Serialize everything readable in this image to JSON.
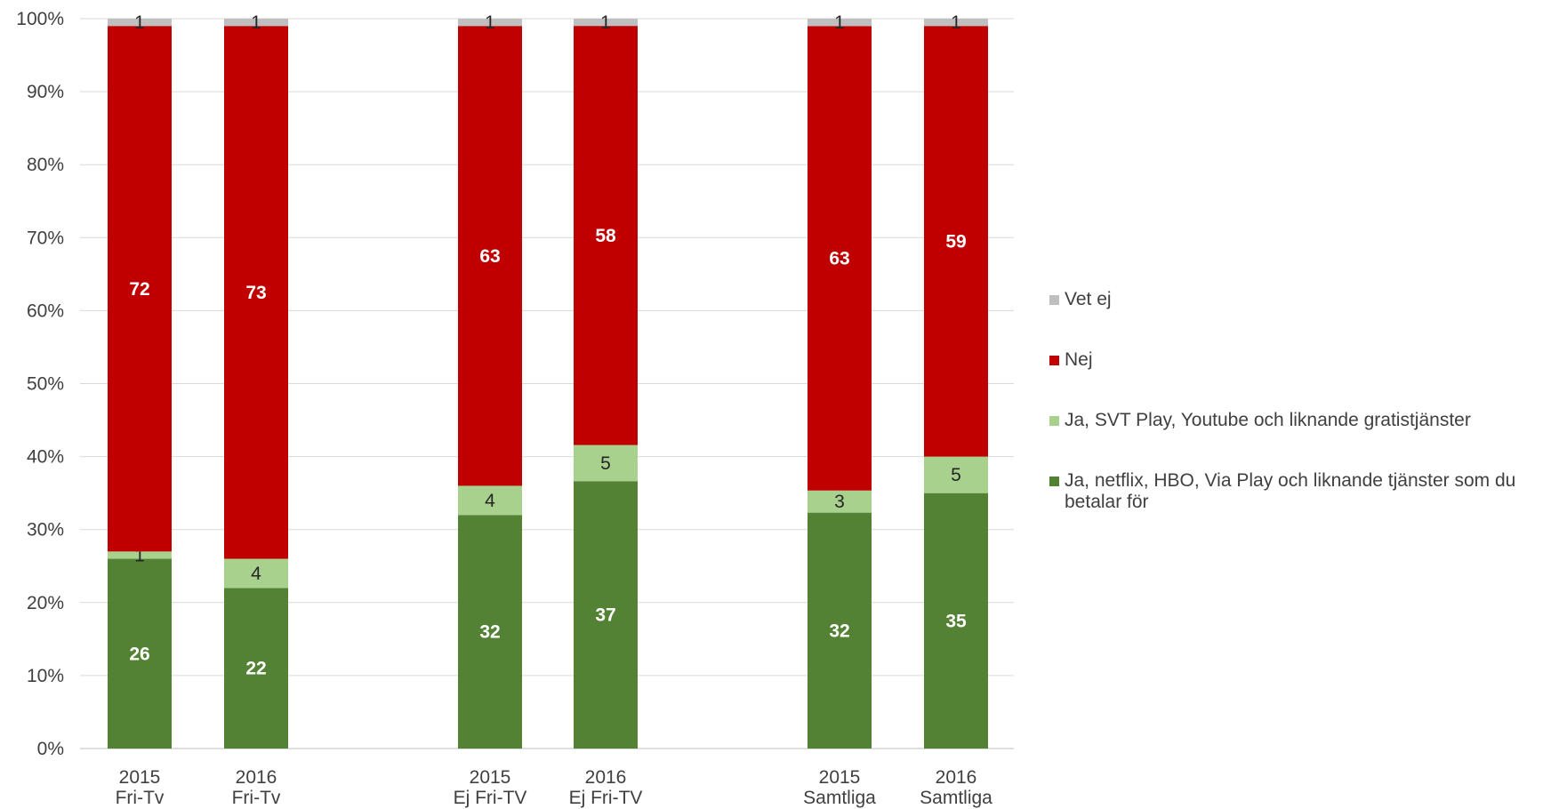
{
  "chart_data": {
    "type": "bar",
    "stacked": true,
    "categories": [
      {
        "year": "2015",
        "group": "Fri-Tv"
      },
      {
        "year": "2016",
        "group": "Fri-Tv"
      },
      {
        "year": "2015",
        "group": "Ej Fri-TV"
      },
      {
        "year": "2016",
        "group": "Ej Fri-TV"
      },
      {
        "year": "2015",
        "group": "Samtliga"
      },
      {
        "year": "2016",
        "group": "Samtliga"
      }
    ],
    "series": [
      {
        "name": "Ja, netflix, HBO, Via Play och liknande tjänster som du betalar för",
        "color": "#548235",
        "label_color": "#ffffff",
        "label_bold": true,
        "values": [
          26,
          22,
          32,
          37,
          32,
          35
        ]
      },
      {
        "name": "Ja, SVT Play, Youtube och liknande gratistjänster",
        "color": "#a9d18e",
        "label_color": "#262626",
        "label_bold": false,
        "values": [
          1,
          4,
          4,
          5,
          3,
          5
        ]
      },
      {
        "name": "Nej",
        "color": "#c00000",
        "label_color": "#ffffff",
        "label_bold": true,
        "values": [
          72,
          73,
          63,
          58,
          63,
          59
        ]
      },
      {
        "name": "Vet ej",
        "color": "#bfbfbf",
        "label_color": "#262626",
        "label_bold": false,
        "values": [
          1,
          1,
          1,
          1,
          1,
          1
        ]
      }
    ],
    "ylim": [
      0,
      100
    ],
    "yticks": [
      "0%",
      "10%",
      "20%",
      "30%",
      "40%",
      "50%",
      "60%",
      "70%",
      "80%",
      "90%",
      "100%"
    ],
    "grid": true,
    "legend_position": "right",
    "legend_order": [
      "Vet ej",
      "Nej",
      "Ja, SVT Play, Youtube och liknande gratistjänster",
      "Ja, netflix, HBO, Via Play och liknande tjänster som du betalar för"
    ]
  }
}
